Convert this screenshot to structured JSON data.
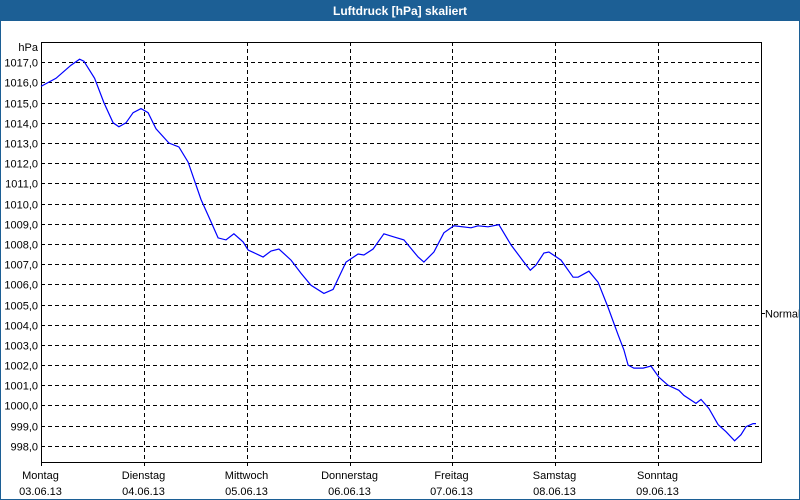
{
  "window": {
    "title": "Luftdruck [hPa] skaliert"
  },
  "chart_data": {
    "type": "line",
    "title": "Luftdruck [hPa] skaliert",
    "ylabel": "hPa",
    "xlabel": "",
    "ylim": [
      997.2,
      1018.0
    ],
    "xlim": [
      "2013-06-03T00:00",
      "2013-06-10T00:00"
    ],
    "grid": true,
    "line_color": "#0000ff",
    "yticks": [
      998,
      999,
      1000,
      1001,
      1002,
      1003,
      1004,
      1005,
      1006,
      1007,
      1008,
      1009,
      1010,
      1011,
      1012,
      1013,
      1014,
      1015,
      1016,
      1017
    ],
    "ytick_labels": [
      "998,0",
      "999,0",
      "1000,0",
      "1001,0",
      "1002,0",
      "1003,0",
      "1004,0",
      "1005,0",
      "1006,0",
      "1007,0",
      "1008,0",
      "1009,0",
      "1010,0",
      "1011,0",
      "1012,0",
      "1013,0",
      "1014,0",
      "1015,0",
      "1016,0",
      "1017,0"
    ],
    "xticks": [
      {
        "date": "2013-06-03T00:00",
        "day": "Montag",
        "label": "03.06.13"
      },
      {
        "date": "2013-06-04T00:00",
        "day": "Dienstag",
        "label": "04.06.13"
      },
      {
        "date": "2013-06-05T00:00",
        "day": "Mittwoch",
        "label": "05.06.13"
      },
      {
        "date": "2013-06-06T00:00",
        "day": "Donnerstag",
        "label": "06.06.13"
      },
      {
        "date": "2013-06-07T00:00",
        "day": "Freitag",
        "label": "07.06.13"
      },
      {
        "date": "2013-06-08T00:00",
        "day": "Samstag",
        "label": "08.06.13"
      },
      {
        "date": "2013-06-09T00:00",
        "day": "Sonntag",
        "label": "09.06.13"
      }
    ],
    "reference": {
      "label": "Normal",
      "value": 1004.6
    },
    "series": [
      {
        "x": [
          "2013-06-03T00:00",
          "2013-06-03T03:30",
          "2013-06-03T07:00",
          "2013-06-03T09:00",
          "2013-06-03T10:00",
          "2013-06-03T12:30",
          "2013-06-03T14:40",
          "2013-06-03T16:50",
          "2013-06-03T18:10",
          "2013-06-03T19:50",
          "2013-06-03T21:30",
          "2013-06-03T23:20",
          "2013-06-04T01:00",
          "2013-06-04T02:50",
          "2013-06-04T05:50",
          "2013-06-04T08:10",
          "2013-06-04T10:20",
          "2013-06-04T13:20",
          "2013-06-04T15:40",
          "2013-06-04T17:20",
          "2013-06-04T19:10",
          "2013-06-04T21:00",
          "2013-06-04T23:10",
          "2013-06-05T00:20",
          "2013-06-05T03:50",
          "2013-06-05T05:40",
          "2013-06-05T07:30",
          "2013-06-05T10:20",
          "2013-06-05T12:40",
          "2013-06-05T15:00",
          "2013-06-05T18:00",
          "2013-06-05T20:10",
          "2013-06-05T23:10",
          "2013-06-06T02:00",
          "2013-06-06T03:20",
          "2013-06-06T05:30",
          "2013-06-06T08:00",
          "2013-06-06T10:20",
          "2013-06-06T12:40",
          "2013-06-06T16:00",
          "2013-06-06T17:20",
          "2013-06-06T19:40",
          "2013-06-06T22:00",
          "2013-06-07T00:20",
          "2013-06-07T04:20",
          "2013-06-07T06:00",
          "2013-06-07T08:20",
          "2013-06-07T10:50",
          "2013-06-07T13:40",
          "2013-06-07T16:40",
          "2013-06-07T18:10",
          "2013-06-07T19:30",
          "2013-06-07T21:20",
          "2013-06-07T22:30",
          "2013-06-08T01:20",
          "2013-06-08T04:10",
          "2013-06-08T05:20",
          "2013-06-08T07:50",
          "2013-06-08T10:00",
          "2013-06-08T12:20",
          "2013-06-08T14:40",
          "2013-06-08T16:00",
          "2013-06-08T17:00",
          "2013-06-08T18:20",
          "2013-06-08T20:30",
          "2013-06-08T22:20",
          "2013-06-09T00:10",
          "2013-06-09T02:20",
          "2013-06-09T04:50",
          "2013-06-09T06:00",
          "2013-06-09T08:50",
          "2013-06-09T10:00",
          "2013-06-09T11:50",
          "2013-06-09T14:00",
          "2013-06-09T15:50",
          "2013-06-09T17:50",
          "2013-06-09T19:20",
          "2013-06-09T20:30",
          "2013-06-09T22:10",
          "2013-06-09T22:50"
        ],
        "y": [
          1015.8,
          1016.2,
          1016.85,
          1017.15,
          1017.05,
          1016.2,
          1015.0,
          1014.0,
          1013.8,
          1014.0,
          1014.5,
          1014.7,
          1014.5,
          1013.7,
          1013.0,
          1012.8,
          1012.05,
          1010.2,
          1009.1,
          1008.3,
          1008.2,
          1008.5,
          1008.1,
          1007.7,
          1007.35,
          1007.65,
          1007.75,
          1007.2,
          1006.55,
          1005.95,
          1005.55,
          1005.75,
          1007.1,
          1007.5,
          1007.45,
          1007.75,
          1008.5,
          1008.35,
          1008.2,
          1007.35,
          1007.1,
          1007.6,
          1008.55,
          1008.9,
          1008.8,
          1008.9,
          1008.85,
          1008.95,
          1007.95,
          1007.1,
          1006.7,
          1006.95,
          1007.55,
          1007.6,
          1007.2,
          1006.35,
          1006.35,
          1006.65,
          1006.1,
          1004.85,
          1003.5,
          1002.75,
          1002.0,
          1001.85,
          1001.85,
          1001.95,
          1001.4,
          1001.0,
          1000.75,
          1000.5,
          1000.1,
          1000.3,
          999.85,
          999.05,
          998.7,
          998.25,
          998.55,
          998.95,
          999.1,
          999.1
        ]
      }
    ]
  }
}
